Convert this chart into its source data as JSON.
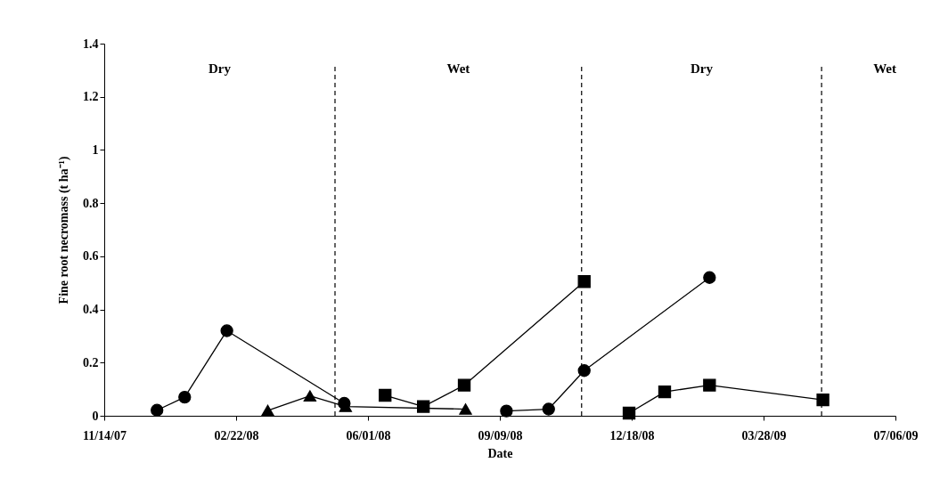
{
  "chart_data": {
    "type": "line",
    "xlabel": "Date",
    "ylabel": "Fine root necromass (t ha⁻¹)",
    "xlim": [
      "2007-11-14",
      "2009-07-06"
    ],
    "xticks": [
      {
        "value": "2007-11-14",
        "label": "11/14/07"
      },
      {
        "value": "2008-02-22",
        "label": "02/22/08"
      },
      {
        "value": "2008-06-01",
        "label": "06/01/08"
      },
      {
        "value": "2008-09-09",
        "label": "09/09/08"
      },
      {
        "value": "2008-12-18",
        "label": "12/18/08"
      },
      {
        "value": "2009-03-28",
        "label": "03/28/09"
      },
      {
        "value": "2009-07-06",
        "label": "07/06/09"
      }
    ],
    "ylim": [
      0,
      1.4
    ],
    "yticks": [
      0,
      0.2,
      0.4,
      0.6,
      0.8,
      1,
      1.2,
      1.4
    ],
    "grid": false,
    "line_style": "solid",
    "series": [
      {
        "color": "#000000",
        "marker": "circle",
        "x": [
          "2007-12-24",
          "2008-01-14",
          "2008-02-15",
          "2008-05-14"
        ],
        "values": [
          0.021,
          0.07,
          0.32,
          0.047
        ]
      },
      {
        "color": "#000000",
        "marker": "triangle",
        "x": [
          "2008-03-17",
          "2008-04-18",
          "2008-05-15",
          "2008-08-14"
        ],
        "values": [
          0.02,
          0.075,
          0.035,
          0.025
        ]
      },
      {
        "color": "#000000",
        "marker": "square",
        "x": [
          "2008-06-14",
          "2008-07-13",
          "2008-08-13",
          "2008-11-12"
        ],
        "values": [
          0.077,
          0.035,
          0.115,
          0.505
        ]
      },
      {
        "color": "#000000",
        "marker": "circle",
        "x": [
          "2008-09-14",
          "2008-10-16",
          "2008-11-12",
          "2009-02-15"
        ],
        "values": [
          0.018,
          0.025,
          0.17,
          0.52
        ]
      },
      {
        "color": "#000000",
        "marker": "square",
        "x": [
          "2008-12-16",
          "2009-01-12",
          "2009-02-15",
          "2009-05-12"
        ],
        "values": [
          0.01,
          0.09,
          0.115,
          0.06
        ]
      }
    ],
    "ref_lines": [
      {
        "axis": "x",
        "value": "2008-05-07",
        "line_style": "dashed",
        "color": "#000000"
      },
      {
        "axis": "x",
        "value": "2008-11-10",
        "line_style": "dashed",
        "color": "#000000"
      },
      {
        "axis": "x",
        "value": "2009-05-11",
        "line_style": "dashed",
        "color": "#000000"
      }
    ],
    "annotations": [
      "Dry",
      "Wet",
      "Dry",
      "Wet"
    ]
  }
}
